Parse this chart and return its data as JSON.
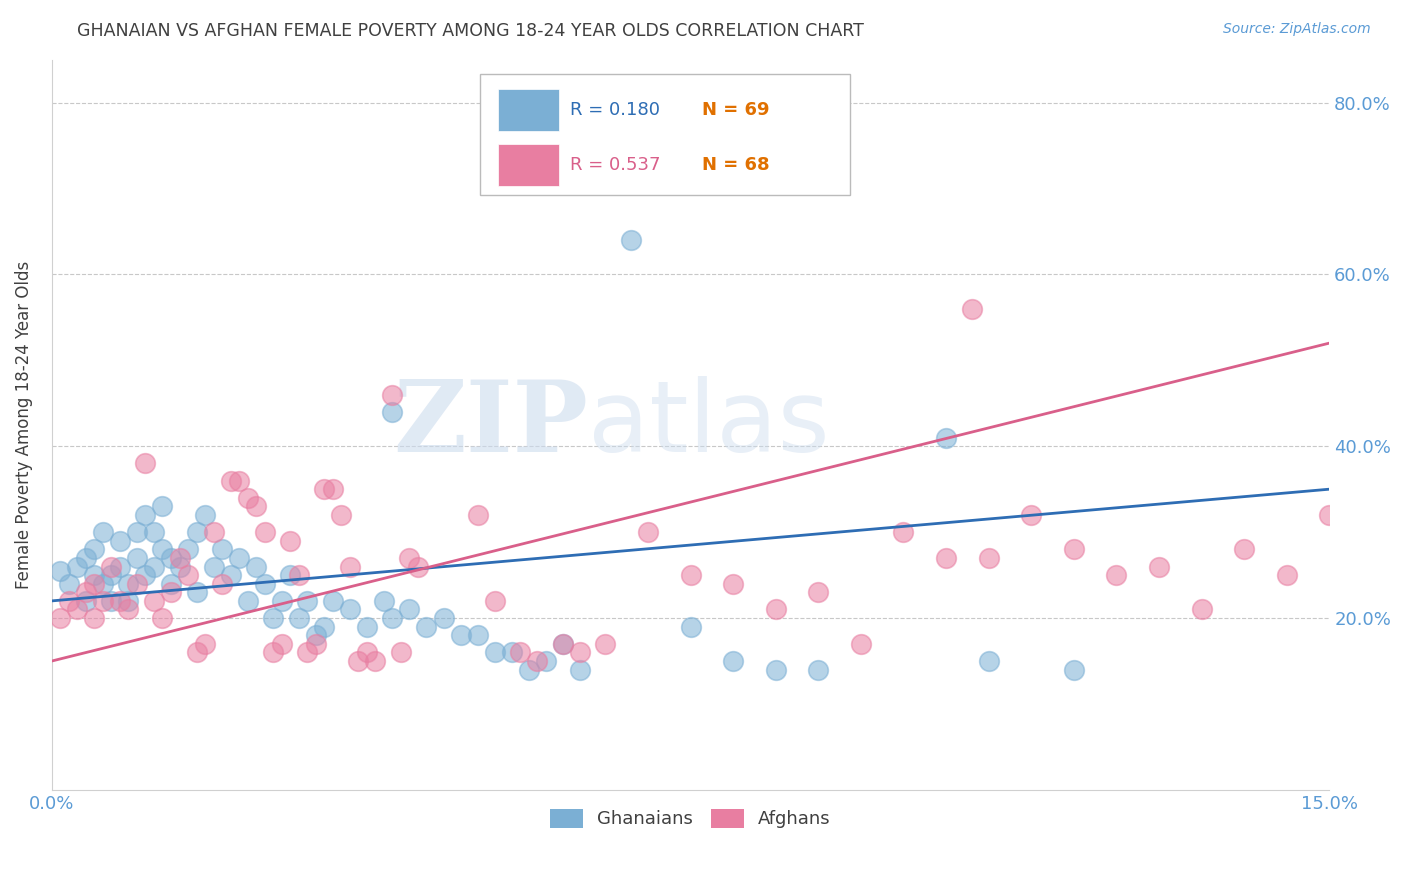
{
  "title": "GHANAIAN VS AFGHAN FEMALE POVERTY AMONG 18-24 YEAR OLDS CORRELATION CHART",
  "source": "Source: ZipAtlas.com",
  "ylabel": "Female Poverty Among 18-24 Year Olds",
  "xlim": [
    0.0,
    0.15
  ],
  "ylim": [
    0.0,
    0.85
  ],
  "yticks": [
    0.2,
    0.4,
    0.6,
    0.8
  ],
  "ytick_labels": [
    "20.0%",
    "40.0%",
    "60.0%",
    "80.0%"
  ],
  "xtick_left": "0.0%",
  "xtick_right": "15.0%",
  "title_color": "#404040",
  "axis_color": "#5b9bd5",
  "grid_color": "#c8c8c8",
  "watermark_zip": "ZIP",
  "watermark_atlas": "atlas",
  "legend_r1": "R = 0.180",
  "legend_n1": "N = 69",
  "legend_r2": "R = 0.537",
  "legend_n2": "N = 68",
  "legend_label1": "Ghanaians",
  "legend_label2": "Afghans",
  "ghanaian_color": "#7bafd4",
  "afghan_color": "#e87ea1",
  "ghanaian_line_color": "#2e6db4",
  "afghan_line_color": "#d95f8a",
  "ghanaian_line_x0": 0.0,
  "ghanaian_line_y0": 0.22,
  "ghanaian_line_x1": 0.15,
  "ghanaian_line_y1": 0.35,
  "afghan_line_x0": 0.0,
  "afghan_line_y0": 0.15,
  "afghan_line_x1": 0.15,
  "afghan_line_y1": 0.52,
  "ghanaian_scatter": [
    [
      0.001,
      0.255
    ],
    [
      0.002,
      0.24
    ],
    [
      0.003,
      0.26
    ],
    [
      0.004,
      0.27
    ],
    [
      0.004,
      0.22
    ],
    [
      0.005,
      0.25
    ],
    [
      0.005,
      0.28
    ],
    [
      0.006,
      0.3
    ],
    [
      0.006,
      0.24
    ],
    [
      0.007,
      0.25
    ],
    [
      0.007,
      0.22
    ],
    [
      0.008,
      0.29
    ],
    [
      0.008,
      0.26
    ],
    [
      0.009,
      0.24
    ],
    [
      0.009,
      0.22
    ],
    [
      0.01,
      0.3
    ],
    [
      0.01,
      0.27
    ],
    [
      0.011,
      0.32
    ],
    [
      0.011,
      0.25
    ],
    [
      0.012,
      0.3
    ],
    [
      0.012,
      0.26
    ],
    [
      0.013,
      0.33
    ],
    [
      0.013,
      0.28
    ],
    [
      0.014,
      0.27
    ],
    [
      0.014,
      0.24
    ],
    [
      0.015,
      0.26
    ],
    [
      0.016,
      0.28
    ],
    [
      0.017,
      0.3
    ],
    [
      0.017,
      0.23
    ],
    [
      0.018,
      0.32
    ],
    [
      0.019,
      0.26
    ],
    [
      0.02,
      0.28
    ],
    [
      0.021,
      0.25
    ],
    [
      0.022,
      0.27
    ],
    [
      0.023,
      0.22
    ],
    [
      0.024,
      0.26
    ],
    [
      0.025,
      0.24
    ],
    [
      0.026,
      0.2
    ],
    [
      0.027,
      0.22
    ],
    [
      0.028,
      0.25
    ],
    [
      0.029,
      0.2
    ],
    [
      0.03,
      0.22
    ],
    [
      0.031,
      0.18
    ],
    [
      0.032,
      0.19
    ],
    [
      0.033,
      0.22
    ],
    [
      0.035,
      0.21
    ],
    [
      0.037,
      0.19
    ],
    [
      0.039,
      0.22
    ],
    [
      0.04,
      0.2
    ],
    [
      0.042,
      0.21
    ],
    [
      0.044,
      0.19
    ],
    [
      0.046,
      0.2
    ],
    [
      0.048,
      0.18
    ],
    [
      0.05,
      0.18
    ],
    [
      0.052,
      0.16
    ],
    [
      0.054,
      0.16
    ],
    [
      0.056,
      0.14
    ],
    [
      0.058,
      0.15
    ],
    [
      0.06,
      0.17
    ],
    [
      0.062,
      0.14
    ],
    [
      0.04,
      0.44
    ],
    [
      0.068,
      0.64
    ],
    [
      0.075,
      0.19
    ],
    [
      0.08,
      0.15
    ],
    [
      0.085,
      0.14
    ],
    [
      0.09,
      0.14
    ],
    [
      0.105,
      0.41
    ],
    [
      0.11,
      0.15
    ],
    [
      0.12,
      0.14
    ]
  ],
  "afghan_scatter": [
    [
      0.001,
      0.2
    ],
    [
      0.002,
      0.22
    ],
    [
      0.003,
      0.21
    ],
    [
      0.004,
      0.23
    ],
    [
      0.005,
      0.24
    ],
    [
      0.005,
      0.2
    ],
    [
      0.006,
      0.22
    ],
    [
      0.007,
      0.26
    ],
    [
      0.008,
      0.22
    ],
    [
      0.009,
      0.21
    ],
    [
      0.01,
      0.24
    ],
    [
      0.011,
      0.38
    ],
    [
      0.012,
      0.22
    ],
    [
      0.013,
      0.2
    ],
    [
      0.014,
      0.23
    ],
    [
      0.015,
      0.27
    ],
    [
      0.016,
      0.25
    ],
    [
      0.017,
      0.16
    ],
    [
      0.018,
      0.17
    ],
    [
      0.019,
      0.3
    ],
    [
      0.02,
      0.24
    ],
    [
      0.021,
      0.36
    ],
    [
      0.022,
      0.36
    ],
    [
      0.023,
      0.34
    ],
    [
      0.024,
      0.33
    ],
    [
      0.025,
      0.3
    ],
    [
      0.026,
      0.16
    ],
    [
      0.027,
      0.17
    ],
    [
      0.028,
      0.29
    ],
    [
      0.029,
      0.25
    ],
    [
      0.03,
      0.16
    ],
    [
      0.031,
      0.17
    ],
    [
      0.032,
      0.35
    ],
    [
      0.033,
      0.35
    ],
    [
      0.034,
      0.32
    ],
    [
      0.035,
      0.26
    ],
    [
      0.036,
      0.15
    ],
    [
      0.037,
      0.16
    ],
    [
      0.038,
      0.15
    ],
    [
      0.04,
      0.46
    ],
    [
      0.041,
      0.16
    ],
    [
      0.042,
      0.27
    ],
    [
      0.043,
      0.26
    ],
    [
      0.05,
      0.32
    ],
    [
      0.052,
      0.22
    ],
    [
      0.055,
      0.16
    ],
    [
      0.057,
      0.15
    ],
    [
      0.06,
      0.17
    ],
    [
      0.062,
      0.16
    ],
    [
      0.065,
      0.17
    ],
    [
      0.07,
      0.3
    ],
    [
      0.075,
      0.25
    ],
    [
      0.08,
      0.24
    ],
    [
      0.085,
      0.21
    ],
    [
      0.09,
      0.23
    ],
    [
      0.095,
      0.17
    ],
    [
      0.1,
      0.3
    ],
    [
      0.105,
      0.27
    ],
    [
      0.108,
      0.56
    ],
    [
      0.11,
      0.27
    ],
    [
      0.115,
      0.32
    ],
    [
      0.12,
      0.28
    ],
    [
      0.125,
      0.25
    ],
    [
      0.13,
      0.26
    ],
    [
      0.135,
      0.21
    ],
    [
      0.14,
      0.28
    ],
    [
      0.145,
      0.25
    ],
    [
      0.15,
      0.32
    ]
  ]
}
